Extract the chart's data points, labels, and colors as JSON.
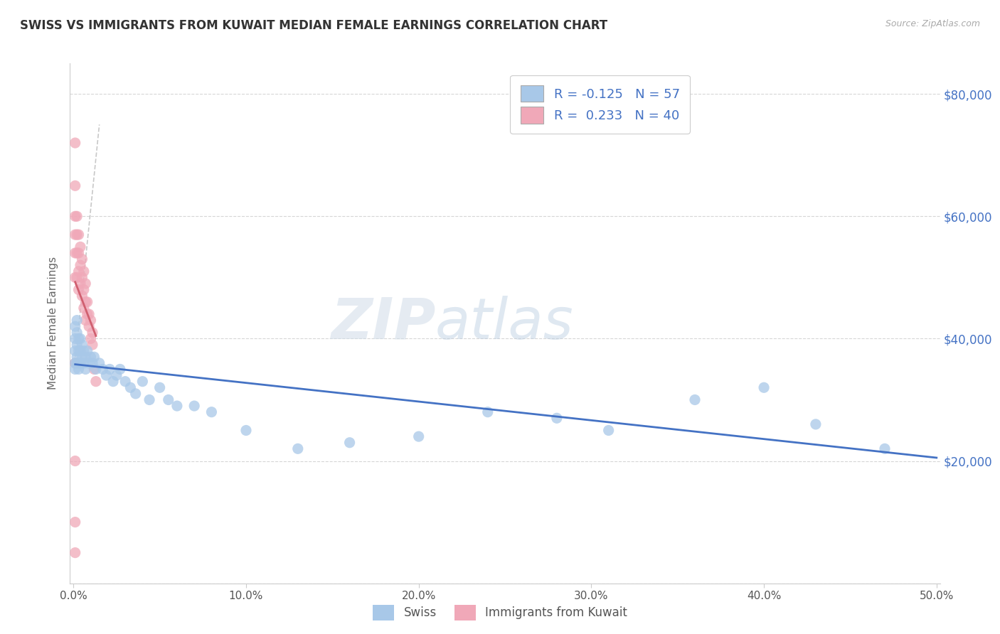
{
  "title": "SWISS VS IMMIGRANTS FROM KUWAIT MEDIAN FEMALE EARNINGS CORRELATION CHART",
  "source_text": "Source: ZipAtlas.com",
  "ylabel": "Median Female Earnings",
  "xlim": [
    -0.002,
    0.502
  ],
  "ylim": [
    0,
    85000
  ],
  "yticks": [
    0,
    20000,
    40000,
    60000,
    80000
  ],
  "ytick_labels": [
    "",
    "$20,000",
    "$40,000",
    "$60,000",
    "$80,000"
  ],
  "xticks": [
    0.0,
    0.1,
    0.2,
    0.3,
    0.4,
    0.5
  ],
  "xtick_labels": [
    "0.0%",
    "10.0%",
    "20.0%",
    "30.0%",
    "40.0%",
    "50.0%"
  ],
  "swiss_color": "#a8c8e8",
  "kuwait_color": "#f0a8b8",
  "trend_line_color_swiss": "#4472c4",
  "trend_line_color_kuwait": "#d06070",
  "swiss_R": -0.125,
  "swiss_N": 57,
  "kuwait_R": 0.233,
  "kuwait_N": 40,
  "legend_swiss_label": "Swiss",
  "legend_kuwait_label": "Immigrants from Kuwait",
  "watermark_zip": "ZIP",
  "watermark_atlas": "atlas",
  "background_color": "#ffffff",
  "grid_color": "#cccccc",
  "swiss_x": [
    0.001,
    0.001,
    0.001,
    0.001,
    0.001,
    0.002,
    0.002,
    0.002,
    0.002,
    0.002,
    0.003,
    0.003,
    0.003,
    0.003,
    0.004,
    0.004,
    0.004,
    0.005,
    0.005,
    0.006,
    0.006,
    0.007,
    0.007,
    0.008,
    0.009,
    0.01,
    0.011,
    0.012,
    0.013,
    0.015,
    0.017,
    0.019,
    0.021,
    0.023,
    0.025,
    0.027,
    0.03,
    0.033,
    0.036,
    0.04,
    0.044,
    0.05,
    0.055,
    0.06,
    0.07,
    0.08,
    0.1,
    0.13,
    0.16,
    0.2,
    0.24,
    0.28,
    0.31,
    0.36,
    0.4,
    0.43,
    0.47
  ],
  "swiss_y": [
    42000,
    40000,
    38000,
    36000,
    35000,
    43000,
    41000,
    39000,
    37000,
    36000,
    40000,
    38000,
    36000,
    35000,
    40000,
    38000,
    36000,
    39000,
    37000,
    38000,
    36000,
    37000,
    35000,
    38000,
    36000,
    37000,
    36000,
    37000,
    35000,
    36000,
    35000,
    34000,
    35000,
    33000,
    34000,
    35000,
    33000,
    32000,
    31000,
    33000,
    30000,
    32000,
    30000,
    29000,
    29000,
    28000,
    25000,
    22000,
    23000,
    24000,
    28000,
    27000,
    25000,
    30000,
    32000,
    26000,
    22000
  ],
  "kuwait_x": [
    0.001,
    0.001,
    0.001,
    0.001,
    0.001,
    0.001,
    0.002,
    0.002,
    0.002,
    0.002,
    0.003,
    0.003,
    0.003,
    0.003,
    0.004,
    0.004,
    0.004,
    0.005,
    0.005,
    0.005,
    0.006,
    0.006,
    0.006,
    0.007,
    0.007,
    0.007,
    0.008,
    0.008,
    0.009,
    0.009,
    0.01,
    0.01,
    0.011,
    0.011,
    0.012,
    0.013,
    0.001,
    0.001,
    0.001,
    0.001
  ],
  "kuwait_y": [
    72000,
    65000,
    60000,
    57000,
    54000,
    50000,
    60000,
    57000,
    54000,
    50000,
    57000,
    54000,
    51000,
    48000,
    55000,
    52000,
    49000,
    53000,
    50000,
    47000,
    51000,
    48000,
    45000,
    49000,
    46000,
    43000,
    46000,
    44000,
    44000,
    42000,
    43000,
    40000,
    41000,
    39000,
    35000,
    33000,
    36000,
    20000,
    10000,
    5000
  ]
}
